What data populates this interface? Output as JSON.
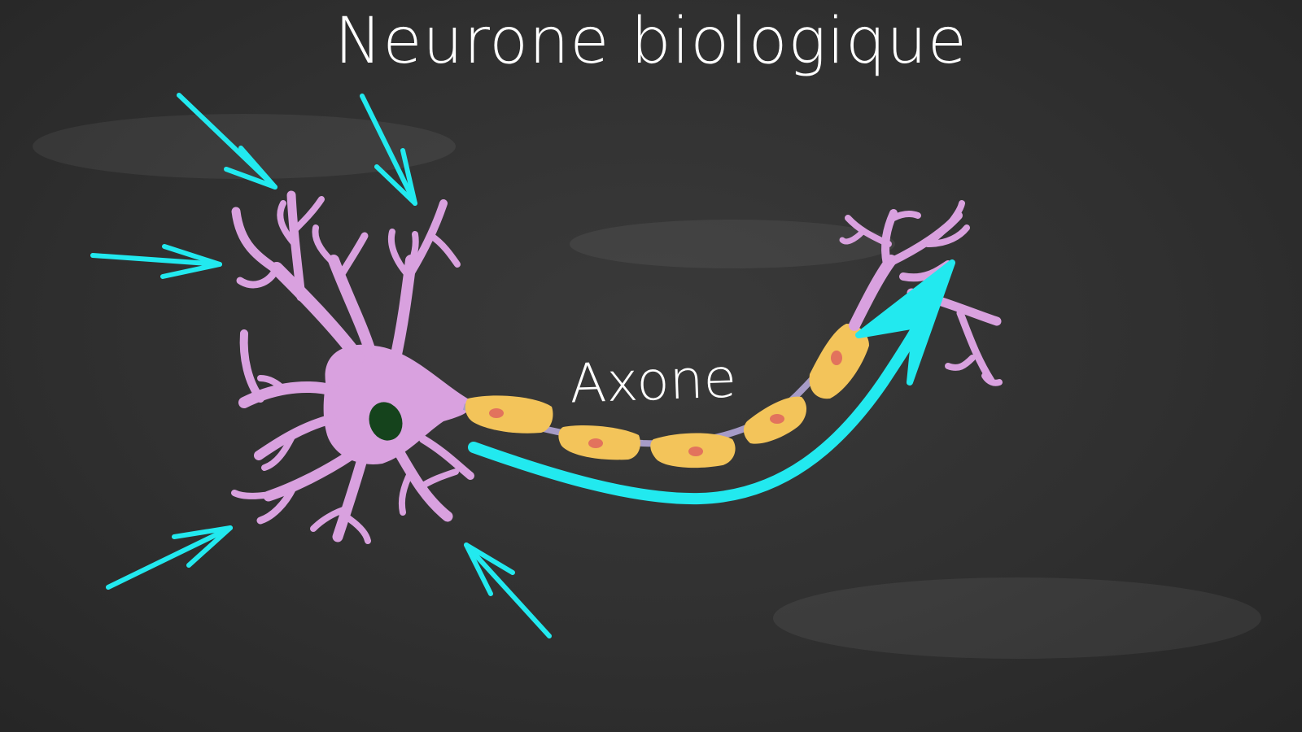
{
  "title": "Neurone biologique",
  "axon_label": "Axone",
  "colors": {
    "board": "#303030",
    "chalk": "#ffffff",
    "dendrite": "#d9a1df",
    "nucleus": "#15431c",
    "myelin": "#f3c45a",
    "myelin_dot": "#e2735d",
    "axon_core": "#a69bc7",
    "arrow": "#22e9ef"
  },
  "icons": {
    "input_arrows": "arrow-icon",
    "signal_arrow": "curved-arrow-icon"
  }
}
